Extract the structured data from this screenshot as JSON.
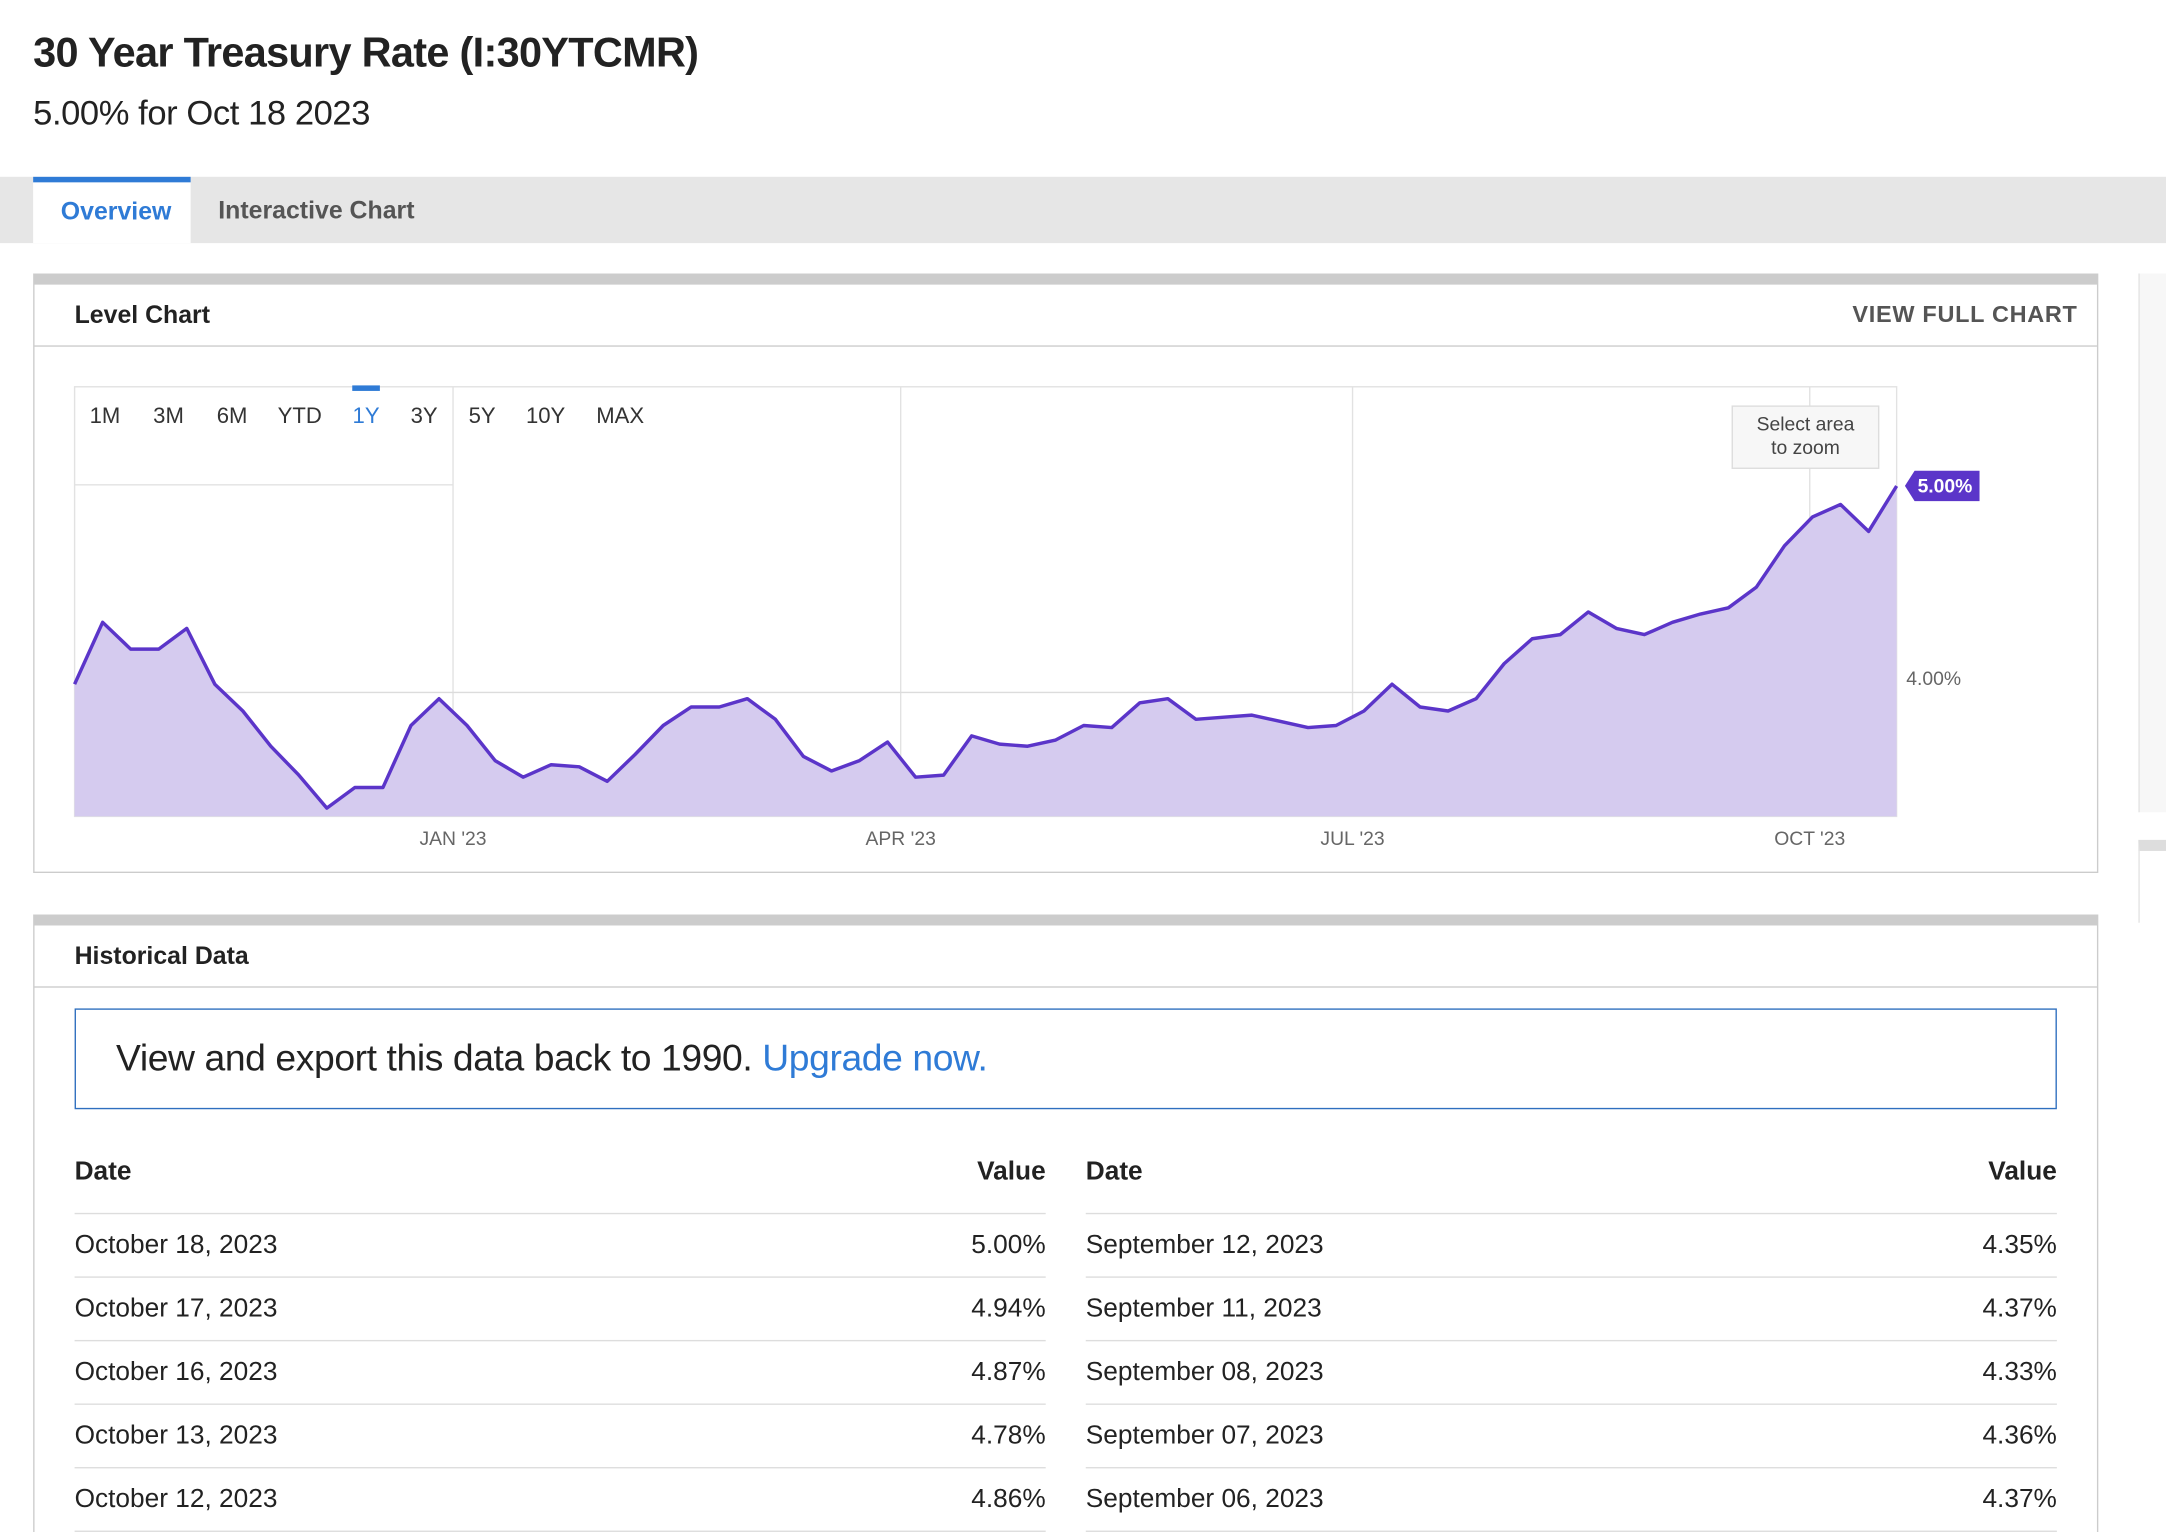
{
  "header": {
    "title": "30 Year Treasury Rate (I:30YTCMR)",
    "subtitle": "5.00% for Oct 18 2023"
  },
  "tabs": [
    "Overview",
    "Interactive Chart"
  ],
  "level_chart": {
    "title": "Level Chart",
    "link": "VIEW FULL CHART",
    "ranges": [
      "1M",
      "3M",
      "6M",
      "YTD",
      "1Y",
      "3Y",
      "5Y",
      "10Y",
      "MAX"
    ],
    "selected_range": "1Y",
    "zoom_hint": [
      "Select area",
      "to zoom"
    ],
    "last_label": "5.00%"
  },
  "chart_data": {
    "type": "line",
    "color": "#5b35c9",
    "fill": "#d5cbef",
    "values": [
      4.04,
      4.34,
      4.21,
      4.21,
      4.31,
      4.04,
      3.91,
      3.74,
      3.6,
      3.44,
      3.54,
      3.54,
      3.84,
      3.97,
      3.84,
      3.67,
      3.59,
      3.65,
      3.64,
      3.57,
      3.7,
      3.84,
      3.93,
      3.93,
      3.97,
      3.87,
      3.69,
      3.62,
      3.67,
      3.76,
      3.59,
      3.6,
      3.79,
      3.75,
      3.74,
      3.77,
      3.84,
      3.83,
      3.95,
      3.97,
      3.87,
      3.88,
      3.89,
      3.86,
      3.83,
      3.84,
      3.91,
      4.04,
      3.93,
      3.91,
      3.97,
      4.14,
      4.26,
      4.28,
      4.39,
      4.31,
      4.28,
      4.34,
      4.38,
      4.41,
      4.51,
      4.71,
      4.85,
      4.91,
      4.78,
      5.0
    ],
    "xlim": [
      0,
      65
    ],
    "xticks": [
      {
        "value": 13.5,
        "label": "JAN '23"
      },
      {
        "value": 29.47,
        "label": "APR '23"
      },
      {
        "value": 45.59,
        "label": "JUL '23"
      },
      {
        "value": 61.9,
        "label": "OCT '23"
      }
    ],
    "ylim": [
      3.4,
      5.48
    ],
    "yticks": [
      {
        "value": 4,
        "label": "4.00%"
      }
    ],
    "grid": true
  },
  "historical": {
    "title": "Historical Data",
    "banner": "View and export this data back to 1990.",
    "banner_link": "Upgrade now."
  },
  "tables": [
    {
      "headers": [
        "Date",
        "Value"
      ],
      "rows": [
        [
          "October 18, 2023",
          "5.00%"
        ],
        [
          "October 17, 2023",
          "4.94%"
        ],
        [
          "October 16, 2023",
          "4.87%"
        ],
        [
          "October 13, 2023",
          "4.78%"
        ],
        [
          "October 12, 2023",
          "4.86%"
        ]
      ]
    },
    {
      "headers": [
        "Date",
        "Value"
      ],
      "rows": [
        [
          "September 12, 2023",
          "4.35%"
        ],
        [
          "September 11, 2023",
          "4.37%"
        ],
        [
          "September 08, 2023",
          "4.33%"
        ],
        [
          "September 07, 2023",
          "4.36%"
        ],
        [
          "September 06, 2023",
          "4.37%"
        ]
      ]
    }
  ]
}
